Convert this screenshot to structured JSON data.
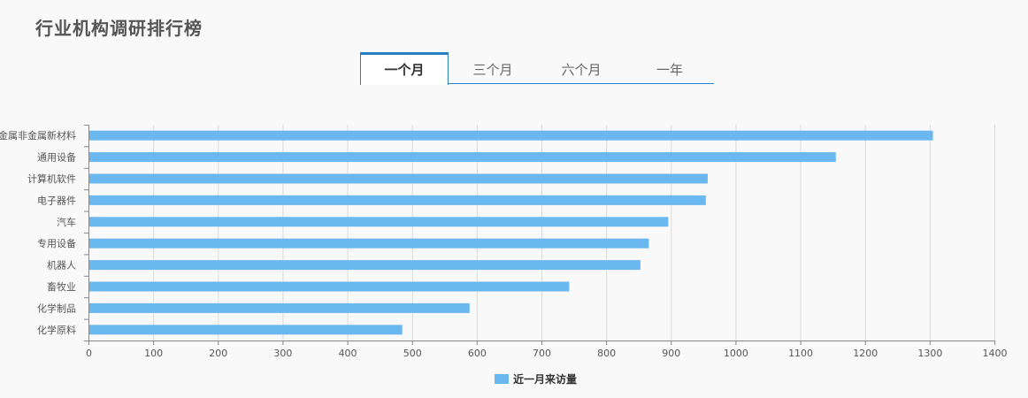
{
  "page": {
    "title": "行业机构调研排行榜"
  },
  "tabs": [
    {
      "label": "一个月",
      "active": true
    },
    {
      "label": "三个月",
      "active": false
    },
    {
      "label": "六个月",
      "active": false
    },
    {
      "label": "一年",
      "active": false
    }
  ],
  "chart_data": {
    "type": "bar",
    "orientation": "horizontal",
    "categories": [
      "金属非金属新材料",
      "通用设备",
      "计算机软件",
      "电子器件",
      "汽车",
      "专用设备",
      "机器人",
      "畜牧业",
      "化学制品",
      "化学原料"
    ],
    "series": [
      {
        "name": "近一月来访量",
        "values": [
          1305,
          1155,
          957,
          954,
          896,
          866,
          853,
          743,
          589,
          485
        ],
        "color": "#6bb8f0"
      }
    ],
    "xlim": [
      0,
      1400
    ],
    "xticks": [
      0,
      100,
      200,
      300,
      400,
      500,
      600,
      700,
      800,
      900,
      1000,
      1100,
      1200,
      1300,
      1400
    ],
    "grid": true,
    "legend_position": "bottom-center"
  }
}
